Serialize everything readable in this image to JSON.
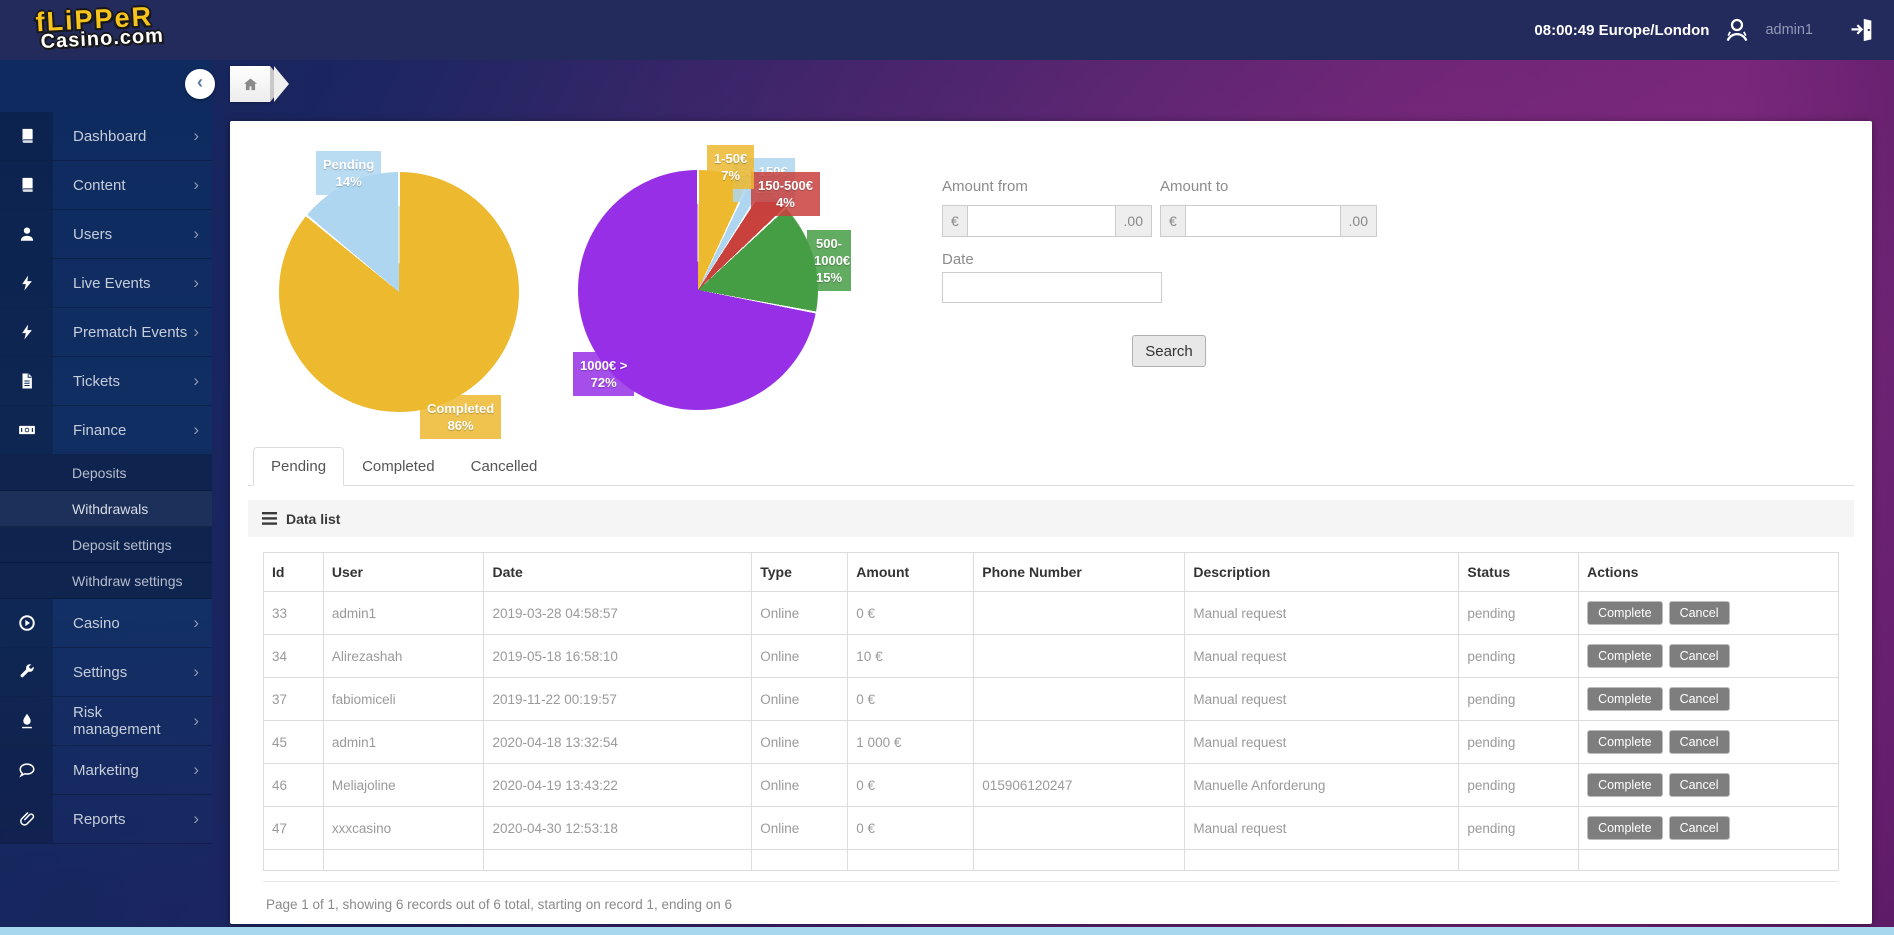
{
  "header": {
    "logo_line1": "fLiPPeR",
    "logo_line2": "Casino.com",
    "clock": "08:00:49 Europe/London",
    "username": "admin1"
  },
  "sidebar": {
    "items": [
      {
        "label": "Dashboard",
        "icon": "book-icon"
      },
      {
        "label": "Content",
        "icon": "book-icon"
      },
      {
        "label": "Users",
        "icon": "user-icon"
      },
      {
        "label": "Live Events",
        "icon": "bolt-icon"
      },
      {
        "label": "Prematch Events",
        "icon": "bolt-icon"
      },
      {
        "label": "Tickets",
        "icon": "file-icon"
      },
      {
        "label": "Finance",
        "icon": "money-icon",
        "expanded": true,
        "children": [
          {
            "label": "Deposits",
            "active": false
          },
          {
            "label": "Withdrawals",
            "active": true
          },
          {
            "label": "Deposit settings",
            "active": false
          },
          {
            "label": "Withdraw settings",
            "active": false
          }
        ]
      },
      {
        "label": "Casino",
        "icon": "play-icon"
      },
      {
        "label": "Settings",
        "icon": "wrench-icon"
      },
      {
        "label": "Risk management",
        "icon": "drop-icon"
      },
      {
        "label": "Marketing",
        "icon": "chat-icon"
      },
      {
        "label": "Reports",
        "icon": "clip-icon"
      }
    ]
  },
  "chart_data": [
    {
      "type": "pie",
      "name": "withdrawal-status-share",
      "legend_position": "none",
      "slices": [
        {
          "label": "Completed",
          "value": 86,
          "color": "#ecb92f"
        },
        {
          "label": "Pending",
          "value": 14,
          "color": "#aed6f1"
        }
      ]
    },
    {
      "type": "pie",
      "name": "withdrawal-amount-ranges",
      "legend_position": "none",
      "slices": [
        {
          "label": "1-50€",
          "value": 7,
          "color": "#ecb92f"
        },
        {
          "label": "50-150€",
          "value": 2,
          "color": "#aed6f1"
        },
        {
          "label": "150-500€",
          "value": 4,
          "color": "#c8413d"
        },
        {
          "label": "500-1000€",
          "value": 15,
          "color": "#459d44"
        },
        {
          "label": "1000€ >",
          "value": 72,
          "color": "#962fe6"
        }
      ]
    }
  ],
  "filters": {
    "amount_from_label": "Amount from",
    "amount_to_label": "Amount to",
    "date_label": "Date",
    "currency_symbol": "€",
    "decimal_suffix": ".00",
    "amount_from_value": "",
    "amount_to_value": "",
    "date_value": "",
    "search_label": "Search"
  },
  "tabs": {
    "items": [
      "Pending",
      "Completed",
      "Cancelled"
    ],
    "active": "Pending"
  },
  "datalist": {
    "title": "Data list",
    "columns": [
      "Id",
      "User",
      "Date",
      "Type",
      "Amount",
      "Phone Number",
      "Description",
      "Status",
      "Actions"
    ],
    "row_actions": [
      "Complete",
      "Cancel"
    ],
    "rows": [
      {
        "id": "33",
        "user": "admin1",
        "date": "2019-03-28 04:58:57",
        "type": "Online",
        "amount": "0 €",
        "phone": "",
        "description": "Manual request",
        "status": "pending"
      },
      {
        "id": "34",
        "user": "Alirezashah",
        "date": "2019-05-18 16:58:10",
        "type": "Online",
        "amount": "10 €",
        "phone": "",
        "description": "Manual request",
        "status": "pending"
      },
      {
        "id": "37",
        "user": "fabiomiceli",
        "date": "2019-11-22 00:19:57",
        "type": "Online",
        "amount": "0 €",
        "phone": "",
        "description": "Manual request",
        "status": "pending"
      },
      {
        "id": "45",
        "user": "admin1",
        "date": "2020-04-18 13:32:54",
        "type": "Online",
        "amount": "1 000 €",
        "phone": "",
        "description": "Manual request",
        "status": "pending"
      },
      {
        "id": "46",
        "user": "Meliajoline",
        "date": "2020-04-19 13:43:22",
        "type": "Online",
        "amount": "0 €",
        "phone": "015906120247",
        "description": "Manuelle Anforderung",
        "status": "pending"
      },
      {
        "id": "47",
        "user": "xxxcasino",
        "date": "2020-04-30 12:53:18",
        "type": "Online",
        "amount": "0 €",
        "phone": "",
        "description": "Manual request",
        "status": "pending"
      }
    ],
    "footer": "Page 1 of 1, showing 6 records out of 6 total, starting on record 1, ending on 6"
  }
}
